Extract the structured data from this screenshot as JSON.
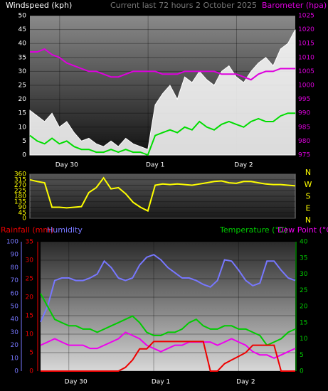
{
  "chart_data": [
    {
      "type": "line",
      "title": "Current last 72 hours 2 October 2025",
      "ylabel": "Windspeed (kph)",
      "y2label": "Barometer (hpa)",
      "categories": [
        null,
        null,
        null,
        null,
        null,
        "Day 30",
        null,
        null,
        null,
        null,
        null,
        null,
        null,
        null,
        null,
        null,
        null,
        "Day 1",
        null,
        null,
        null,
        null,
        null,
        null,
        null,
        null,
        null,
        null,
        null,
        "Day 2",
        null,
        null,
        null,
        null,
        null,
        null,
        null
      ],
      "ylim": [
        0,
        50
      ],
      "yticks": [
        0,
        5,
        10,
        15,
        20,
        25,
        30,
        35,
        40,
        45,
        50
      ],
      "y2lim": [
        975,
        1025
      ],
      "y2ticks": [
        975,
        980,
        985,
        990,
        995,
        1000,
        1005,
        1010,
        1015,
        1020,
        1025
      ],
      "grid": true,
      "series": [
        {
          "color": "#ffffff",
          "fill": true,
          "axis": "y",
          "values": [
            16,
            14,
            12,
            15,
            10,
            12,
            8,
            5,
            6,
            4,
            3,
            5,
            3,
            6,
            4,
            3,
            2,
            18,
            22,
            25,
            20,
            28,
            26,
            30,
            27,
            25,
            30,
            32,
            28,
            26,
            30,
            33,
            35,
            32,
            38,
            40,
            45
          ]
        },
        {
          "color": "#00dd00",
          "fill": false,
          "axis": "y",
          "values": [
            7,
            5,
            4,
            6,
            4,
            5,
            3,
            2,
            2,
            1,
            1,
            2,
            1,
            2,
            1,
            1,
            0,
            7,
            8,
            9,
            8,
            10,
            9,
            12,
            10,
            9,
            11,
            12,
            11,
            10,
            12,
            13,
            12,
            12,
            14,
            15,
            15
          ]
        },
        {
          "color": "#dd00dd",
          "fill": false,
          "axis": "y2",
          "values": [
            1012,
            1012,
            1013,
            1011,
            1010,
            1008,
            1007,
            1006,
            1005,
            1005,
            1004,
            1003,
            1003,
            1004,
            1005,
            1005,
            1005,
            1005,
            1004,
            1004,
            1004,
            1005,
            1005,
            1005,
            1005,
            1005,
            1004,
            1004,
            1004,
            1003,
            1002,
            1004,
            1005,
            1005,
            1006,
            1006,
            1006
          ]
        }
      ]
    },
    {
      "type": "line",
      "ylim": [
        0,
        360
      ],
      "yticks": [
        0,
        45,
        90,
        135,
        180,
        225,
        270,
        315,
        360
      ],
      "compass_labels": [
        "N",
        "W",
        "S",
        "E",
        "N"
      ],
      "grid": true,
      "series": [
        {
          "color": "#ffff00",
          "fill": false,
          "axis": "y",
          "values": [
            315,
            300,
            290,
            90,
            90,
            85,
            90,
            95,
            210,
            250,
            330,
            240,
            250,
            200,
            130,
            90,
            60,
            270,
            280,
            275,
            280,
            275,
            270,
            280,
            290,
            300,
            305,
            290,
            285,
            300,
            300,
            290,
            280,
            275,
            275,
            270,
            265
          ]
        }
      ]
    },
    {
      "type": "line",
      "ylabel": "Rainfall (mm)",
      "y2label": "Humidity",
      "y3label": "Temperature (°C)",
      "dewlabel": "Dew Point (°C)",
      "categories": [
        null,
        null,
        null,
        null,
        null,
        "Day 30",
        null,
        null,
        null,
        null,
        null,
        null,
        null,
        null,
        null,
        null,
        null,
        "Day 1",
        null,
        null,
        null,
        null,
        null,
        null,
        null,
        null,
        null,
        null,
        null,
        "Day 2",
        null,
        null,
        null,
        null,
        null,
        null,
        null
      ],
      "ylim": [
        0,
        35
      ],
      "yticks": [
        0,
        5,
        10,
        15,
        20,
        25,
        30,
        35
      ],
      "y2lim": [
        0,
        100
      ],
      "y2ticks": [
        0,
        10,
        20,
        30,
        40,
        50,
        60,
        70,
        80,
        90,
        100
      ],
      "y3lim": [
        0,
        40
      ],
      "y3ticks": [
        0,
        5,
        10,
        15,
        20,
        25,
        30,
        35,
        40
      ],
      "grid": true,
      "series": [
        {
          "color": "#7777ff",
          "fill": false,
          "axis": "y2",
          "values": [
            38,
            50,
            70,
            72,
            72,
            70,
            70,
            72,
            75,
            85,
            80,
            72,
            70,
            72,
            82,
            88,
            90,
            86,
            80,
            76,
            72,
            72,
            70,
            67,
            65,
            70,
            86,
            85,
            78,
            70,
            66,
            68,
            85,
            85,
            78,
            72,
            70
          ]
        },
        {
          "color": "#00cc00",
          "fill": false,
          "axis": "y3",
          "values": [
            24,
            20,
            16,
            15,
            14,
            14,
            13,
            13,
            12,
            13,
            14,
            15,
            16,
            17,
            15,
            12,
            11,
            11,
            12,
            12,
            13,
            15,
            16,
            14,
            13,
            13,
            14,
            14,
            13,
            13,
            12,
            11,
            8,
            9,
            10,
            12,
            13
          ]
        },
        {
          "color": "#ee00ee",
          "fill": false,
          "axis": "y3",
          "values": [
            8,
            9,
            10,
            9,
            8,
            8,
            8,
            7,
            7,
            8,
            9,
            10,
            12,
            11,
            10,
            8,
            7,
            6,
            7,
            8,
            8,
            9,
            9,
            9,
            9,
            8,
            9,
            10,
            9,
            8,
            6,
            5,
            5,
            4,
            5,
            6,
            7
          ]
        },
        {
          "color": "#ee0000",
          "fill": false,
          "axis": "y",
          "values": [
            0,
            0,
            0,
            0,
            0,
            0,
            0,
            0,
            0,
            0,
            0,
            0,
            1,
            3,
            6,
            6,
            8,
            8,
            8,
            8,
            8,
            8,
            8,
            8,
            0,
            0,
            2,
            3,
            4,
            5,
            7,
            7,
            7,
            7,
            0,
            0,
            0
          ]
        }
      ]
    }
  ]
}
